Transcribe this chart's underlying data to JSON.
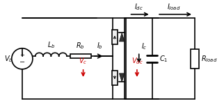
{
  "bg_color": "#ffffff",
  "line_color": "#000000",
  "red_color": "#cc0000",
  "component_color": "#555555",
  "labels": {
    "Vb": "V_b",
    "Lb": "L_b",
    "Rb": "R_b",
    "Ib": "I_b",
    "Vc": "V_c",
    "Vdc": "V_dc",
    "Idc": "I_dc",
    "Ic": "I_c",
    "Iload": "I_load",
    "C1": "C_1",
    "Rload": "R_load"
  },
  "figsize": [
    3.22,
    1.56
  ],
  "dpi": 100
}
